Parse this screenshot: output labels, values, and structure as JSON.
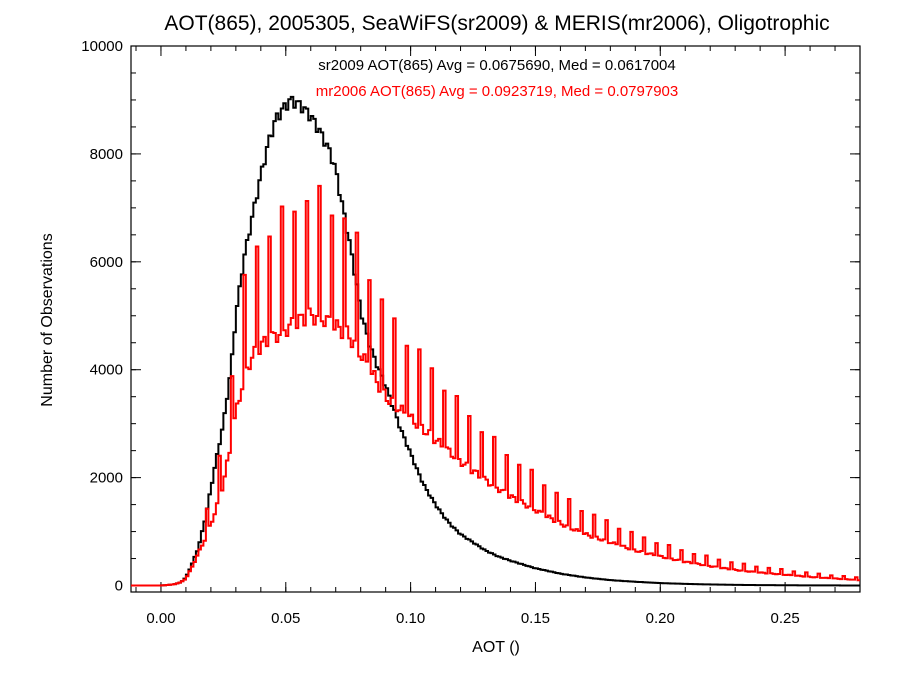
{
  "chart_data": {
    "type": "bar",
    "title": "AOT(865), 2005305, SeaWiFS(sr2009) & MERIS(mr2006), Oligotrophic",
    "xlabel": "AOT ()",
    "ylabel": "Number of Observations",
    "xlim": [
      -0.012,
      0.28
    ],
    "ylim": [
      -120,
      10000
    ],
    "xticks": [
      0.0,
      0.05,
      0.1,
      0.15,
      0.2,
      0.25
    ],
    "xtick_labels": [
      "0.00",
      "0.05",
      "0.10",
      "0.15",
      "0.20",
      "0.25"
    ],
    "yticks": [
      0,
      2000,
      4000,
      6000,
      8000,
      10000
    ],
    "ytick_labels": [
      "0",
      "2000",
      "4000",
      "6000",
      "8000",
      "10000"
    ],
    "grid": false,
    "bin_width": 0.001,
    "annotations": [
      {
        "text": "sr2009 AOT(865) Avg = 0.0675690, Med = 0.0617004",
        "color": "#000000"
      },
      {
        "text": "mr2006 AOT(865) Avg = 0.0923719, Med = 0.0797903",
        "color": "#ff0000"
      }
    ],
    "series": [
      {
        "color": "#000000",
        "style": "step",
        "x": [
          -0.012,
          0.0,
          0.005,
          0.008,
          0.01,
          0.012,
          0.015,
          0.018,
          0.02,
          0.022,
          0.025,
          0.028,
          0.03,
          0.033,
          0.036,
          0.04,
          0.043,
          0.046,
          0.05,
          0.052,
          0.054,
          0.056,
          0.058,
          0.06,
          0.062,
          0.065,
          0.068,
          0.07,
          0.072,
          0.075,
          0.078,
          0.08,
          0.083,
          0.086,
          0.09,
          0.093,
          0.096,
          0.1,
          0.103,
          0.106,
          0.11,
          0.113,
          0.116,
          0.12,
          0.125,
          0.13,
          0.135,
          0.14,
          0.15,
          0.16,
          0.17,
          0.18,
          0.19,
          0.2,
          0.21,
          0.22,
          0.23,
          0.24,
          0.25,
          0.26,
          0.27,
          0.28
        ],
        "y": [
          0,
          0,
          20,
          60,
          150,
          350,
          700,
          1300,
          1800,
          2300,
          3000,
          4000,
          5000,
          6000,
          6700,
          7600,
          8200,
          8650,
          8900,
          9000,
          8950,
          8900,
          8800,
          8700,
          8550,
          8300,
          8000,
          7700,
          7200,
          6500,
          5700,
          5100,
          4550,
          4150,
          3700,
          3300,
          2900,
          2450,
          2100,
          1800,
          1500,
          1300,
          1130,
          950,
          800,
          650,
          540,
          460,
          320,
          220,
          150,
          100,
          70,
          45,
          30,
          20,
          12,
          8,
          5,
          3,
          2,
          0
        ]
      },
      {
        "color": "#ff0000",
        "style": "step",
        "x": [
          -0.012,
          0.0,
          0.005,
          0.008,
          0.01,
          0.012,
          0.015,
          0.018,
          0.02,
          0.022,
          0.025,
          0.028,
          0.03,
          0.033,
          0.036,
          0.04,
          0.045,
          0.05,
          0.055,
          0.06,
          0.065,
          0.07,
          0.075,
          0.08,
          0.085,
          0.09,
          0.095,
          0.1,
          0.11,
          0.12,
          0.13,
          0.14,
          0.15,
          0.16,
          0.17,
          0.18,
          0.19,
          0.2,
          0.21,
          0.22,
          0.23,
          0.24,
          0.25,
          0.26,
          0.27,
          0.28
        ],
        "y": [
          0,
          0,
          20,
          60,
          130,
          300,
          600,
          900,
          1150,
          1400,
          1900,
          2600,
          3200,
          3800,
          4200,
          4450,
          4600,
          4750,
          4900,
          5000,
          4950,
          4800,
          4650,
          4300,
          3900,
          3500,
          3300,
          3100,
          2700,
          2300,
          1950,
          1650,
          1400,
          1150,
          950,
          800,
          650,
          540,
          440,
          360,
          290,
          240,
          200,
          160,
          130,
          100
        ]
      }
    ]
  }
}
